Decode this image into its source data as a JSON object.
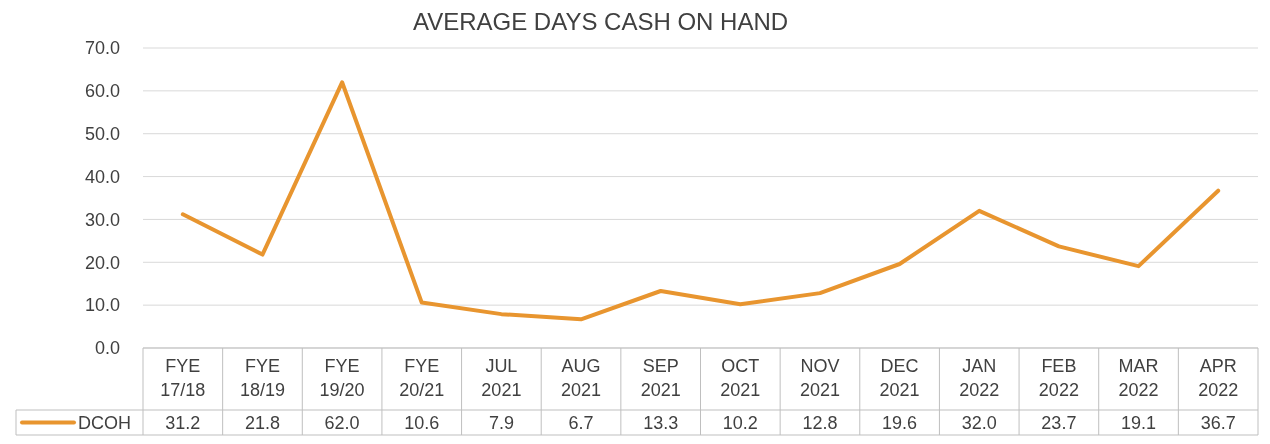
{
  "chart_data": {
    "type": "line",
    "title": "AVERAGE DAYS CASH ON HAND",
    "categories": [
      "FYE 17/18",
      "FYE 18/19",
      "FYE 19/20",
      "FYE 20/21",
      "JUL 2021",
      "AUG 2021",
      "SEP 2021",
      "OCT 2021",
      "NOV 2021",
      "DEC 2021",
      "JAN 2022",
      "FEB 2022",
      "MAR 2022",
      "APR 2022"
    ],
    "series": [
      {
        "name": "DCOH",
        "color": "#e8952f",
        "values": [
          31.2,
          21.8,
          62.0,
          10.6,
          7.9,
          6.7,
          13.3,
          10.2,
          12.8,
          19.6,
          32.0,
          23.7,
          19.1,
          36.7
        ],
        "value_labels": [
          "31.2",
          "21.8",
          "62.0",
          "10.6",
          "7.9",
          "6.7",
          "13.3",
          "10.2",
          "12.8",
          "19.6",
          "32.0",
          "23.7",
          "19.1",
          "36.7"
        ]
      }
    ],
    "ylim": [
      0,
      70
    ],
    "yticks": [
      {
        "value": 0,
        "label": "0.0"
      },
      {
        "value": 10,
        "label": "10.0"
      },
      {
        "value": 20,
        "label": "20.0"
      },
      {
        "value": 30,
        "label": "30.0"
      },
      {
        "value": 40,
        "label": "40.0"
      },
      {
        "value": 50,
        "label": "50.0"
      },
      {
        "value": 60,
        "label": "60.0"
      },
      {
        "value": 70,
        "label": "70.0"
      }
    ],
    "grid": "y",
    "legend": "bottom",
    "marker": "none",
    "line_style": "solid"
  }
}
